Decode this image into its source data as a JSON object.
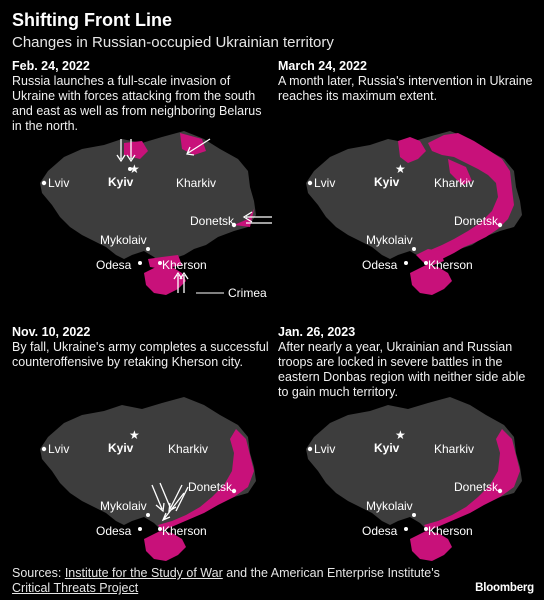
{
  "header": {
    "title": "Shifting Front Line",
    "subtitle": "Changes in Russian-occupied Ukrainian territory"
  },
  "cities": {
    "lviv": "Lviv",
    "kyiv": "Kyiv",
    "kharkiv": "Kharkiv",
    "donetsk": "Donetsk",
    "mykolaiv": "Mykolaiv",
    "odesa": "Odesa",
    "kherson": "Kherson",
    "crimea": "Crimea"
  },
  "panels": [
    {
      "date": "Feb. 24, 2022",
      "description": "Russia launches a full-scale invasion of Ukraine with forces attacking from the south and east as well as from neighboring Belarus in the north."
    },
    {
      "date": "March 24, 2022",
      "description": "A month later, Russia's intervention in Ukraine reaches its maximum extent."
    },
    {
      "date": "Nov. 10, 2022",
      "description": "By fall, Ukraine's army completes a successful counteroffensive by retaking Kherson city."
    },
    {
      "date": "Jan. 26, 2023",
      "description": "After nearly a year, Ukrainian and Russian troops are locked in severe battles in the eastern Donbas region with neither side able to gain much territory."
    }
  ],
  "footer": {
    "sources_prefix": "Sources: ",
    "source_1": "Institute for the Study of War",
    "sources_middle": " and the American Enterprise Institute's ",
    "source_2": "Critical Threats Project",
    "logo": "Bloomberg"
  },
  "colors": {
    "background": "#000000",
    "territory": "#3d3d3d",
    "occupied": "#c8117a",
    "text": "#ffffff"
  }
}
